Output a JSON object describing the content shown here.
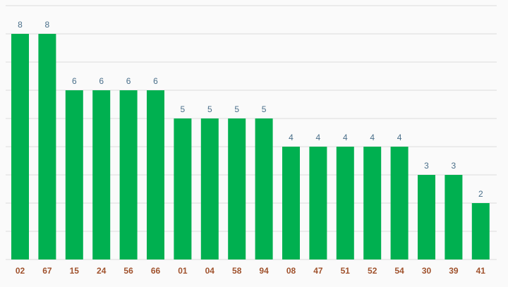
{
  "chart_data": {
    "type": "bar",
    "categories": [
      "02",
      "67",
      "15",
      "24",
      "56",
      "66",
      "01",
      "04",
      "58",
      "94",
      "08",
      "47",
      "51",
      "52",
      "54",
      "30",
      "39",
      "41"
    ],
    "values": [
      8,
      8,
      6,
      6,
      6,
      6,
      5,
      5,
      5,
      5,
      4,
      4,
      4,
      4,
      4,
      3,
      3,
      2
    ],
    "color": "#00b050",
    "ylim": [
      0,
      9
    ],
    "yticks": [
      0,
      1,
      2,
      3,
      4,
      5,
      6,
      7,
      8,
      9
    ],
    "grid": true,
    "value_labels_shown": true
  }
}
